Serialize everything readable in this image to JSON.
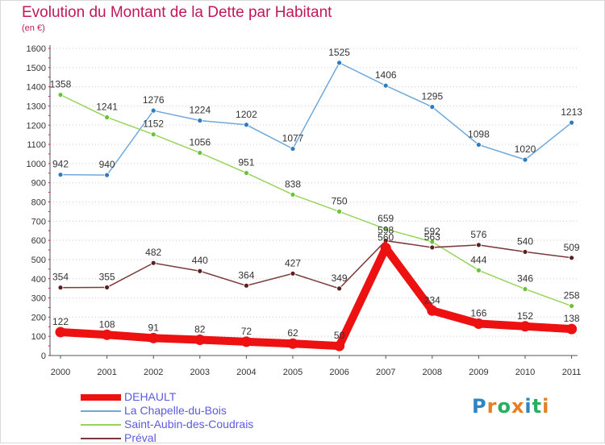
{
  "title": "Evolution du Montant de la Dette par Habitant",
  "subtitle": "(en €)",
  "logo": {
    "text": "Proxiti",
    "colors": [
      "#2e86c1",
      "#e67e22",
      "#27ae60",
      "#e67e22",
      "#2e86c1",
      "#27ae60",
      "#e67e22"
    ]
  },
  "chart_data": {
    "type": "line",
    "title": "Evolution du Montant de la Dette par Habitant",
    "subtitle": "(en €)",
    "xlabel": "",
    "ylabel": "",
    "x": [
      "2000",
      "2001",
      "2002",
      "2003",
      "2004",
      "2005",
      "2006",
      "2007",
      "2008",
      "2009",
      "2010",
      "2011"
    ],
    "ylim": [
      0,
      1600
    ],
    "yticks": [
      0,
      100,
      200,
      300,
      400,
      500,
      600,
      700,
      800,
      900,
      1000,
      1100,
      1200,
      1300,
      1400,
      1500,
      1600
    ],
    "grid": "horizontal dotted",
    "legend_position": "bottom-left",
    "series": [
      {
        "name": "La Chapelle-du-Bois",
        "color": "#6fa8dc",
        "marker": "#2f7bbf",
        "values": [
          942,
          940,
          1276,
          1224,
          1202,
          1077,
          1525,
          1406,
          1295,
          1098,
          1020,
          1213
        ]
      },
      {
        "name": "Saint-Aubin-des-Coudrais",
        "color": "#99d45a",
        "marker": "#6cc13a",
        "values": [
          1358,
          1241,
          1152,
          1056,
          951,
          838,
          750,
          659,
          592,
          444,
          346,
          258
        ]
      },
      {
        "name": "Préval",
        "color": "#7b3a3a",
        "marker": "#5a1f1f",
        "values": [
          354,
          355,
          482,
          440,
          364,
          427,
          349,
          598,
          563,
          576,
          540,
          509
        ]
      },
      {
        "name": "DEHAULT",
        "color": "#ee1111",
        "marker": "#ee1111",
        "values": [
          122,
          108,
          91,
          82,
          72,
          62,
          50,
          560,
          234,
          166,
          152,
          138
        ]
      }
    ],
    "data_labels": [
      [
        "942",
        "940",
        "1276",
        "1224",
        "1202",
        "1077",
        "1525",
        "1406",
        "1295",
        "1098",
        "1020",
        "1213"
      ],
      [
        "1358",
        "1241",
        "1152",
        "1056",
        "951",
        "838",
        "750",
        "659",
        "592",
        "444",
        "346",
        "258"
      ],
      [
        "354",
        "355",
        "482",
        "440",
        "364",
        "427",
        "349",
        "598",
        "563",
        "576",
        "540",
        "509"
      ],
      [
        "122",
        "108",
        "91",
        "82",
        "72",
        "62",
        "50",
        "560",
        "234",
        "166",
        "152",
        "138"
      ]
    ],
    "legend": [
      "DEHAULT",
      "La Chapelle-du-Bois",
      "Saint-Aubin-des-Coudrais",
      "Préval"
    ]
  }
}
